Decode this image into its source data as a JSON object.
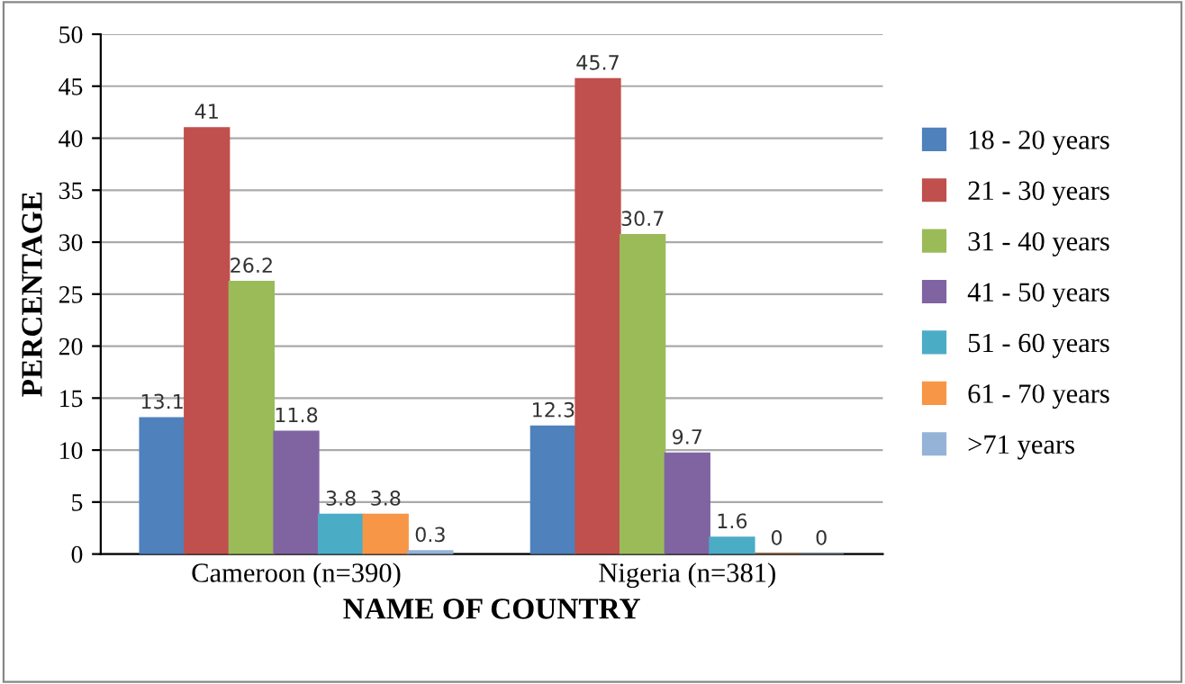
{
  "chart_data": {
    "type": "bar",
    "xlabel": "NAME OF COUNTRY",
    "ylabel": "PERCENTAGE",
    "categories": [
      "Cameroon (n=390)",
      "Nigeria (n=381)"
    ],
    "series": [
      {
        "name": "18 - 20 years",
        "color": "#4f81bd",
        "values": [
          13.1,
          12.3
        ]
      },
      {
        "name": "21 - 30 years",
        "color": "#c0504d",
        "values": [
          41,
          45.7
        ]
      },
      {
        "name": "31 - 40 years",
        "color": "#9bbb59",
        "values": [
          26.2,
          30.7
        ]
      },
      {
        "name": "41 - 50 years",
        "color": "#8064a2",
        "values": [
          11.8,
          9.7
        ]
      },
      {
        "name": "51 - 60 years",
        "color": "#4bacc6",
        "values": [
          3.8,
          1.6
        ]
      },
      {
        "name": "61 - 70 years",
        "color": "#f79646",
        "values": [
          3.8,
          0
        ]
      },
      {
        "name": ">71 years",
        "color": "#95b3d7",
        "values": [
          0.3,
          0
        ]
      }
    ],
    "ylim": [
      0,
      50
    ],
    "yticks": [
      0,
      5,
      10,
      15,
      20,
      25,
      30,
      35,
      40,
      45,
      50
    ],
    "grid": "y",
    "legend": "right",
    "data_labels": true
  }
}
